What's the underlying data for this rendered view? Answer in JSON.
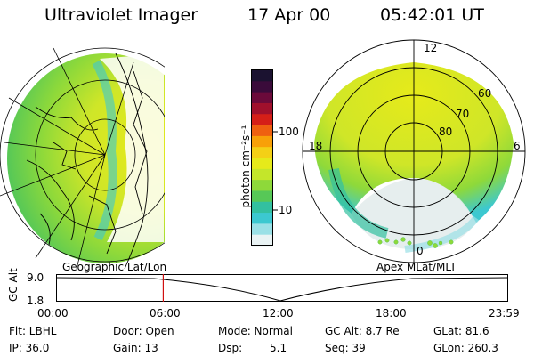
{
  "header": {
    "instrument": "Ultraviolet Imager",
    "date": "17 Apr 00",
    "time": "05:42:01 UT"
  },
  "colorbar": {
    "unit_label": "photon cm⁻²s⁻¹",
    "ticks": [
      "100",
      "10"
    ],
    "colors": [
      "#1b1230",
      "#3a0b3a",
      "#6b0a3a",
      "#a0102c",
      "#d51f18",
      "#ef6010",
      "#f8a008",
      "#f4d016",
      "#e6ea1a",
      "#c4e62a",
      "#8ed93a",
      "#57c857",
      "#33c0a0",
      "#3cc8d0",
      "#9ae0e6",
      "#e9f3f4"
    ]
  },
  "polar_plot": {
    "lat_labels": [
      "60",
      "70",
      "80"
    ],
    "mlt_labels": {
      "top": "12",
      "left": "18",
      "right": "6",
      "bottom": "0"
    }
  },
  "timeline": {
    "left_label": "Geographic Lat/Lon",
    "right_label": "Apex MLat/MLT",
    "yaxis_label": "GC Alt",
    "yticks": [
      "9.0",
      "1.8"
    ],
    "xticks": [
      "00:00",
      "06:00",
      "12:00",
      "18:00",
      "23:59"
    ],
    "current_time_fraction": 0.2375,
    "marker_color": "#d01010"
  },
  "footer": {
    "filter": "Flt: LBHL",
    "ip": "IP: 36.0",
    "door": "Door: Open",
    "gain": "Gain: 13",
    "mode": "Mode: Normal",
    "dsp_label": "Dsp:",
    "dsp_value": "5.1",
    "gc_alt": "GC Alt: 8.7 Re",
    "seq": "Seq: 39",
    "glat": "GLat: 81.6",
    "glon": "GLon: 260.3"
  }
}
